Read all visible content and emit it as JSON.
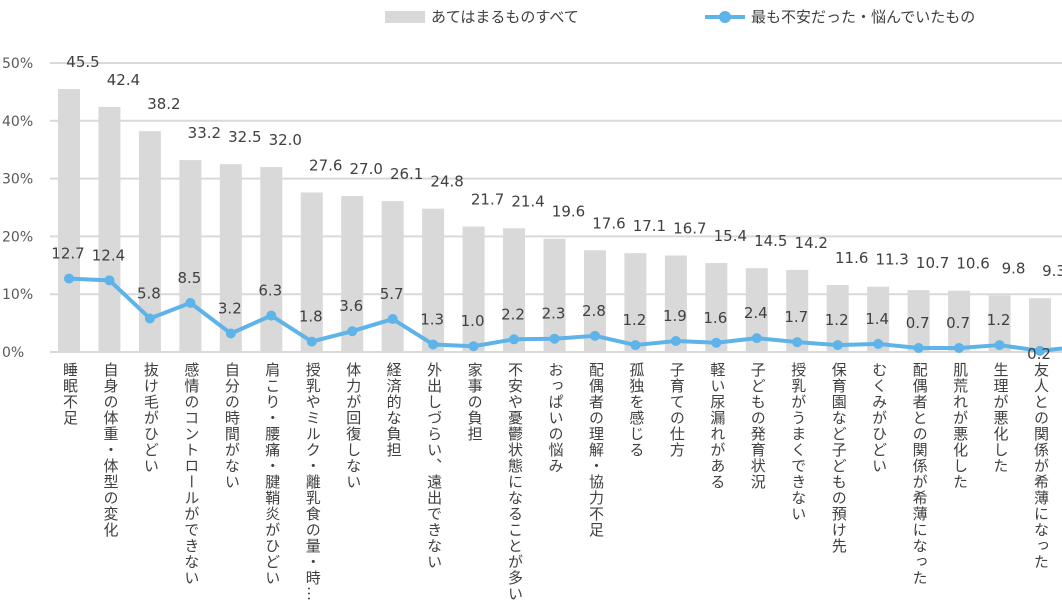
{
  "chart_data": {
    "type": "bar",
    "title": "",
    "xlabel": "",
    "ylabel": "",
    "ylim": [
      0,
      50
    ],
    "yticks": [
      "0%",
      "10%",
      "20%",
      "30%",
      "40%",
      "50%"
    ],
    "grid": true,
    "legend_position": "top",
    "categories": [
      "睡眠不足",
      "自身の体重・体型の変化",
      "抜け毛がひどい",
      "感情のコントロールができない",
      "自分の時間がない",
      "肩こり・腰痛・腱鞘炎がひどい",
      "授乳やミルク・離乳食の量・時…",
      "体力が回復しない",
      "経済的な負担",
      "外出しづらい、遠出できない",
      "家事の負担",
      "不安や憂鬱状態になることが多い",
      "おっぱいの悩み",
      "配偶者の理解・協力不足",
      "孤独を感じる",
      "子育ての仕方",
      "軽い尿漏れがある",
      "子どもの発育状況",
      "授乳がうまくできない",
      "保育園など子どもの預け先",
      "むくみがひどい",
      "配偶者との関係が希薄になった",
      "肌荒れが悪化した",
      "生理が悪化した",
      "友人との関係が希薄になった"
    ],
    "series": [
      {
        "name": "あてはまるものすべて",
        "type": "bar",
        "color": "#d9d9d9",
        "values": [
          45.5,
          42.4,
          38.2,
          33.2,
          32.5,
          32.0,
          27.6,
          27.0,
          26.1,
          24.8,
          21.7,
          21.4,
          19.6,
          17.6,
          17.1,
          16.7,
          15.4,
          14.5,
          14.2,
          11.6,
          11.3,
          10.7,
          10.6,
          9.8,
          9.3
        ],
        "labels": [
          "45.5",
          "42.4",
          "38.2",
          "33.2",
          "32.5",
          "32.0",
          "27.6",
          "27.0",
          "26.1",
          "24.8",
          "21.7",
          "21.4",
          "19.6",
          "17.6",
          "17.1",
          "16.7",
          "15.4",
          "14.5",
          "14.2",
          "11.6",
          "11.3",
          "10.7",
          "10.6",
          "9.8",
          "9.3"
        ]
      },
      {
        "name": "最も不安だった・悩んでいたもの",
        "type": "line",
        "color": "#5eb3e8",
        "values": [
          12.7,
          12.4,
          5.8,
          8.5,
          3.2,
          6.3,
          1.8,
          3.6,
          5.7,
          1.3,
          1.0,
          2.2,
          2.3,
          2.8,
          1.2,
          1.9,
          1.6,
          2.4,
          1.7,
          1.2,
          1.4,
          0.7,
          0.7,
          1.2,
          0.2
        ],
        "labels": [
          "12.7",
          "12.4",
          "5.8",
          "8.5",
          "3.2",
          "6.3",
          "1.8",
          "3.6",
          "5.7",
          "1.3",
          "1.0",
          "2.2",
          "2.3",
          "2.8",
          "1.2",
          "1.9",
          "1.6",
          "2.4",
          "1.7",
          "1.2",
          "1.4",
          "0.7",
          "0.7",
          "1.2",
          "0.2"
        ]
      }
    ]
  }
}
